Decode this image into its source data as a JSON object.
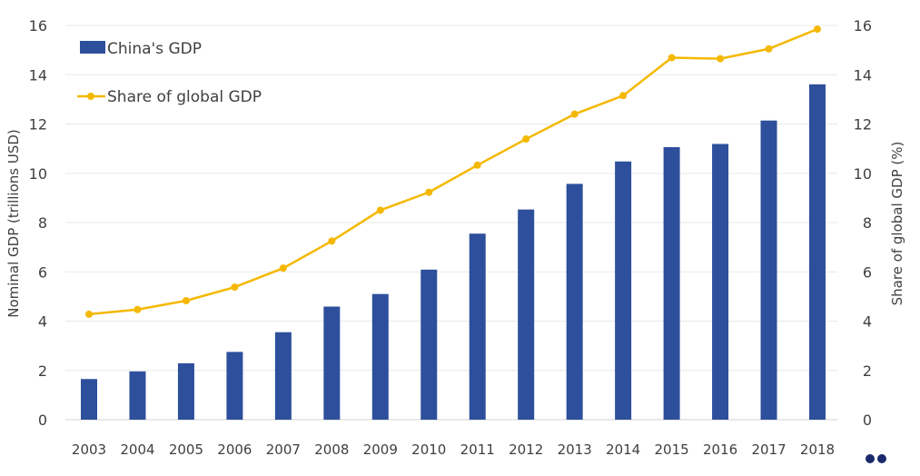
{
  "chart_data": {
    "type": "bar+line",
    "title": "",
    "categories": [
      "2003",
      "2004",
      "2005",
      "2006",
      "2007",
      "2008",
      "2009",
      "2010",
      "2011",
      "2012",
      "2013",
      "2014",
      "2015",
      "2016",
      "2017",
      "2018"
    ],
    "series": [
      {
        "name": "China's GDP",
        "type": "bar",
        "axis": "left",
        "color": "#2e4f9c",
        "values": [
          1.65,
          1.96,
          2.29,
          2.75,
          3.55,
          4.59,
          5.1,
          6.09,
          7.55,
          8.53,
          9.57,
          10.48,
          11.06,
          11.19,
          12.14,
          13.61
        ]
      },
      {
        "name": "Share of global GDP",
        "type": "line",
        "axis": "right",
        "color": "#f5b800",
        "values": [
          4.28,
          4.47,
          4.83,
          5.38,
          6.15,
          7.25,
          8.5,
          9.23,
          10.33,
          11.39,
          12.4,
          13.15,
          14.69,
          14.65,
          15.05,
          15.85
        ]
      }
    ],
    "ylabel": "Nominal GDP (trillions USD)",
    "y2label": "Share of global GDP (%)",
    "ylim": [
      0,
      16
    ],
    "y2lim": [
      0,
      16
    ],
    "yticks": [
      "0",
      "2",
      "4",
      "6",
      "8",
      "10",
      "12",
      "14",
      "16"
    ],
    "grid": true,
    "legend_placement": "top-left"
  }
}
